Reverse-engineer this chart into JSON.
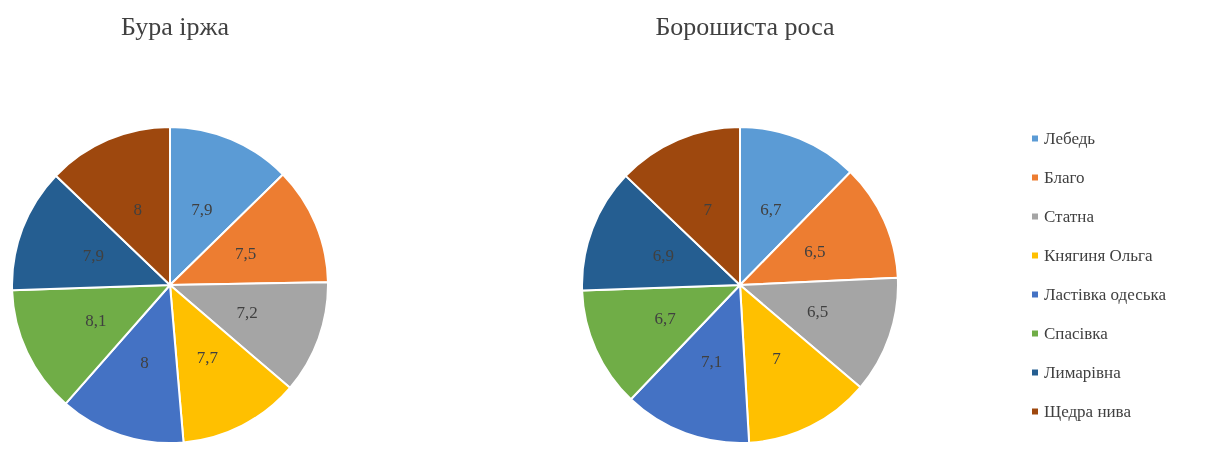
{
  "chart_data": [
    {
      "type": "pie",
      "title": "Бура іржа",
      "categories": [
        null,
        null,
        null,
        null,
        null,
        null,
        null,
        null
      ],
      "values": [
        7.9,
        7.5,
        7.2,
        7.7,
        8,
        8.1,
        7.9,
        8
      ],
      "value_labels": [
        "7,9",
        "7,5",
        "7,2",
        "7,7",
        "8",
        "8,1",
        "7,9",
        "8"
      ],
      "colors": [
        "#5b9bd5",
        "#ed7d31",
        "#a5a5a5",
        "#ffc000",
        "#4472c4",
        "#70ad47",
        "#255e91",
        "#9e480e"
      ],
      "legend": false
    },
    {
      "type": "pie",
      "title": "Борошиста роса",
      "categories": [
        "Лебедь",
        "Благо",
        "Статна",
        "Княгиня Ольга",
        "Ластівка одеська",
        "Спасівка",
        "Лимарівна",
        "Щедра нива"
      ],
      "values": [
        6.7,
        6.5,
        6.5,
        7,
        7.1,
        6.7,
        6.9,
        7
      ],
      "value_labels": [
        "6,7",
        "6,5",
        "6,5",
        "7",
        "7,1",
        "6,7",
        "6,9",
        "7"
      ],
      "colors": [
        "#5b9bd5",
        "#ed7d31",
        "#a5a5a5",
        "#ffc000",
        "#4472c4",
        "#70ad47",
        "#255e91",
        "#9e480e"
      ],
      "legend": "right"
    }
  ]
}
